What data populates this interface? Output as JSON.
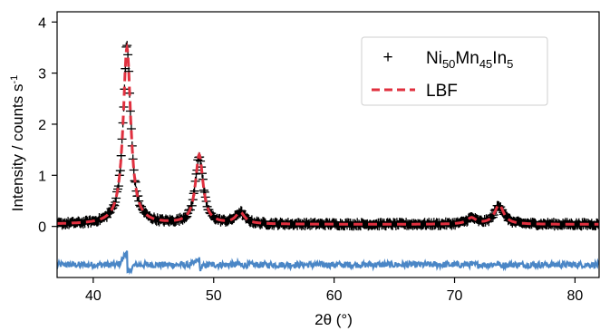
{
  "chart_data": {
    "type": "scatter",
    "xlabel": "2θ (°)",
    "ylabel": "Intensity / counts s",
    "ylabel_superscript": "-1",
    "xlim": [
      37,
      82
    ],
    "ylim": [
      -1.0,
      4.2
    ],
    "x_ticks": [
      40,
      50,
      60,
      70,
      80
    ],
    "y_ticks": [
      0,
      1,
      2,
      3,
      4
    ],
    "grid": false,
    "legend": {
      "placement": "top-right",
      "entries": [
        {
          "marker": "+",
          "base": "Ni",
          "sub1": "50",
          "mid1": "Mn",
          "sub2": "45",
          "mid2": "In",
          "sub3": "5"
        },
        {
          "marker": "dashed-line",
          "label": "LBF"
        }
      ]
    },
    "colors": {
      "data": "#000000",
      "fit": "#e0303f",
      "residual": "#4a86c6"
    },
    "background_level": 0.04,
    "residual_offset": -0.75,
    "peaks": [
      {
        "x": 42.8,
        "height": 3.45
      },
      {
        "x": 48.8,
        "height": 1.35
      },
      {
        "x": 52.2,
        "height": 0.22
      },
      {
        "x": 71.4,
        "height": 0.12
      },
      {
        "x": 73.7,
        "height": 0.38
      }
    ]
  }
}
